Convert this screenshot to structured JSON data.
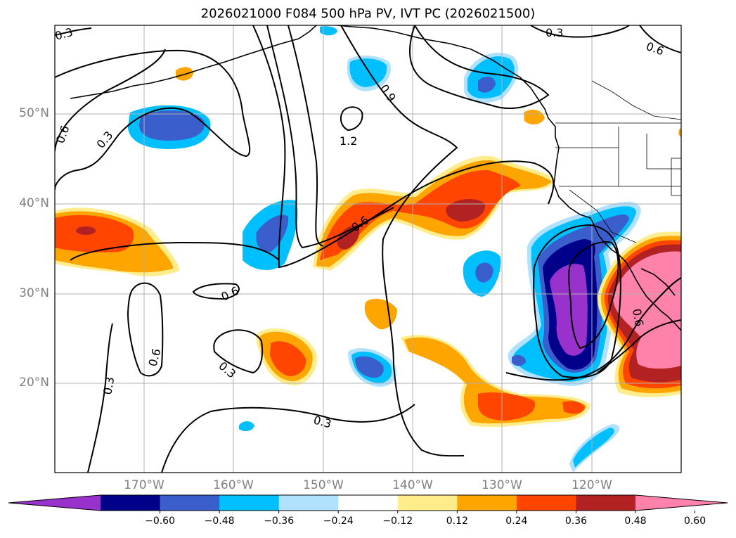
{
  "title": "2026021000 F084 500 hPa PV, IVT PC (2026021500)",
  "lat_labels": [
    "50°N",
    "40°N",
    "30°N",
    "20°N"
  ],
  "lon_labels": [
    "170°W",
    "160°W",
    "150°W",
    "140°W",
    "130°W",
    "120°W"
  ],
  "contour_labels": [
    "0.3",
    "0.6",
    "0.3",
    "0.6",
    "1.2",
    "0.9",
    "0.3",
    "0.6",
    "0.6",
    "0.6",
    "0.3",
    "0.3",
    "0.3",
    "0.6"
  ],
  "colorbar": {
    "ticks": [
      "−0.60",
      "−0.48",
      "−0.36",
      "−0.24",
      "−0.12",
      "0.12",
      "0.24",
      "0.36",
      "0.48",
      "0.60"
    ],
    "colors": [
      "#9932cc",
      "#00008b",
      "#3a5fcd",
      "#00bfff",
      "#b0e2ff",
      "#ffffff",
      "#ffec8b",
      "#ffa500",
      "#ff4500",
      "#b22222",
      "#ff82ab"
    ]
  },
  "colors": {
    "neg_060": "#9932cc",
    "neg_048": "#00008b",
    "neg_036": "#3a5fcd",
    "neg_024": "#00bfff",
    "neg_012": "#b0e2ff",
    "pos_012": "#ffec8b",
    "pos_024": "#ffa500",
    "pos_036": "#ff4500",
    "pos_048": "#b22222",
    "pos_060": "#ff82ab"
  }
}
